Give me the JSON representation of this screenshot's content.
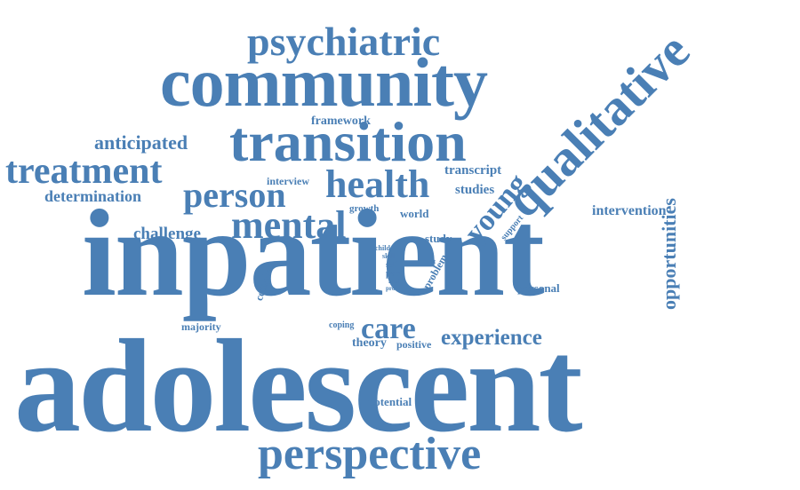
{
  "theme": {
    "word_color": "#4a7fb5",
    "background": "#ffffff"
  },
  "words": {
    "adolescent": "adolescent",
    "inpatient": "inpatient",
    "community": "community",
    "transition": "transition",
    "qualitative": "qualitative",
    "perspective": "perspective",
    "psychiatric": "psychiatric",
    "mental": "mental",
    "person": "person",
    "health": "health",
    "treatment": "treatment",
    "young": "young",
    "opportunities": "opportunities",
    "experience": "experience",
    "care": "care",
    "anticipated": "anticipated",
    "determination": "determination",
    "challenge": "challenge",
    "intervention": "intervention",
    "framework": "framework",
    "transcript": "transcript",
    "studies": "studies",
    "interview": "interview",
    "growth": "growth",
    "world": "world",
    "study": "study",
    "support": "support",
    "complex": "complex",
    "majority": "majority",
    "coping": "coping",
    "theory": "theory",
    "positive": "positive",
    "potential": "potential",
    "personal": "personal",
    "problem": "problem",
    "child": "child",
    "skill": "skill",
    "self": "self",
    "part": "part",
    "real": "real",
    "unit": "unit",
    "prof": "prof"
  }
}
